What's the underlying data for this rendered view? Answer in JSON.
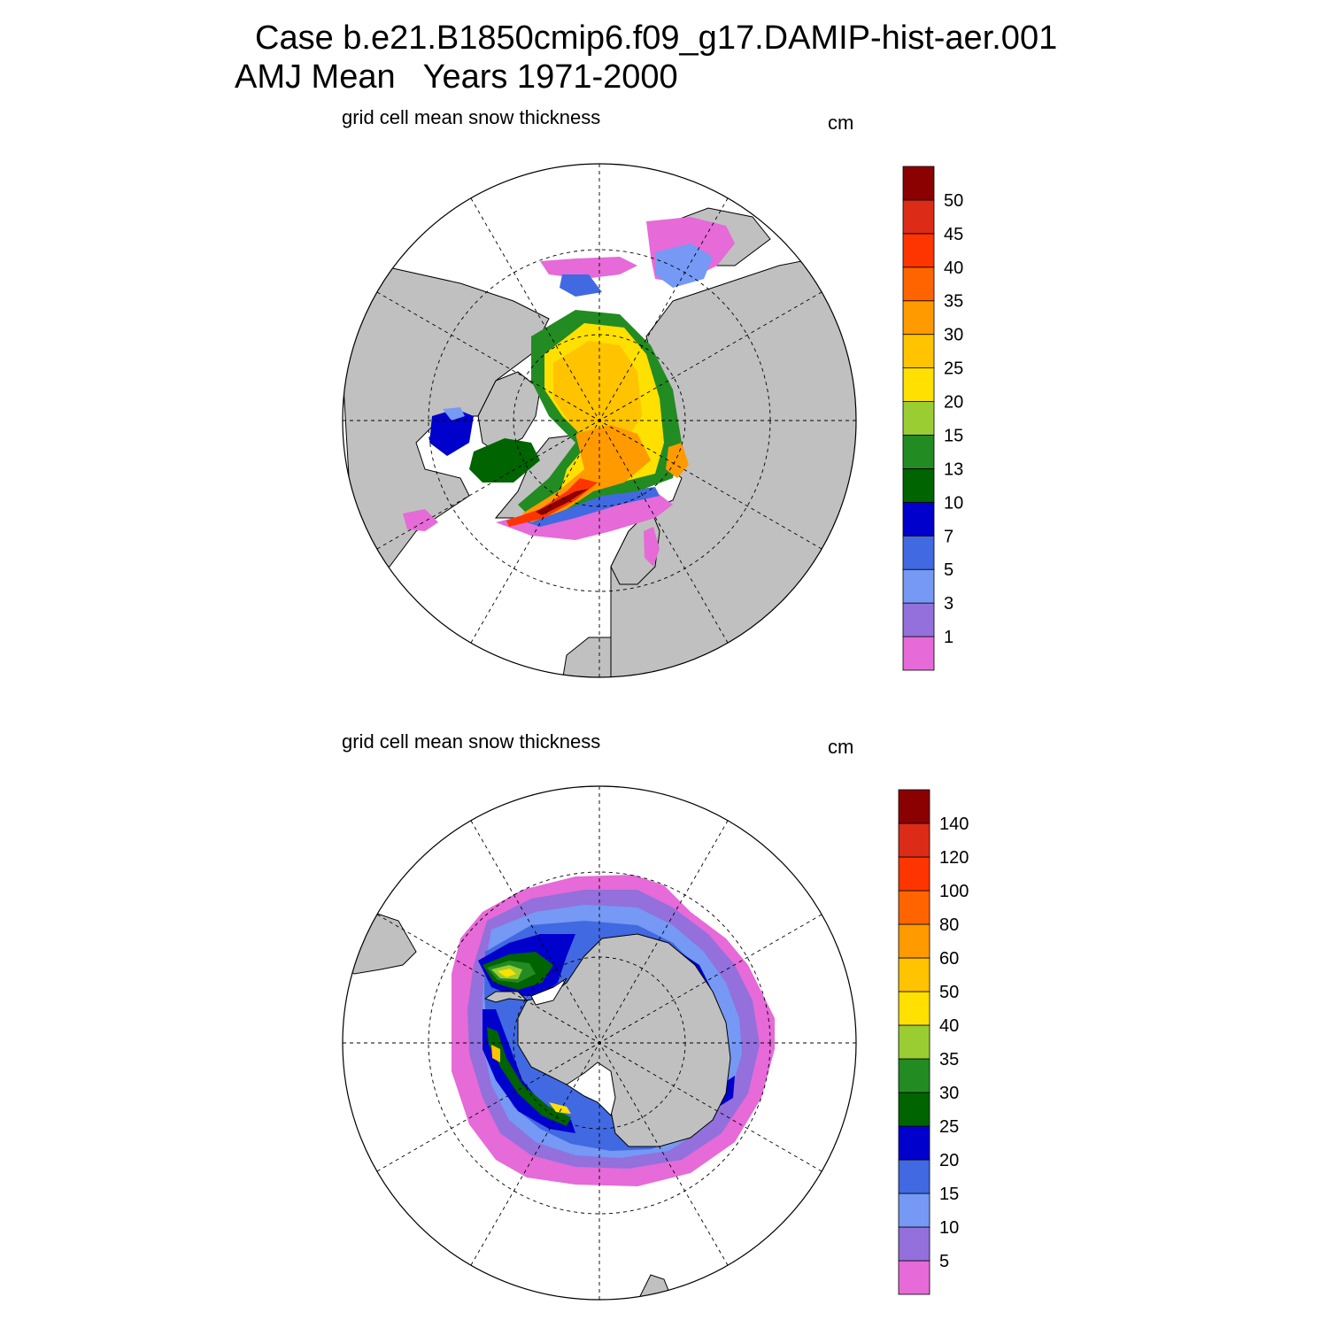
{
  "title": {
    "line1": "Case b.e21.B1850cmip6.f09_g17.DAMIP-hist-aer.001",
    "line2": "AMJ Mean   Years 1971-2000"
  },
  "colors": {
    "land": "#c0c0c0",
    "ocean": "#ffffff",
    "scale": [
      "#e66ad8",
      "#9370db",
      "#7599f4",
      "#4169e1",
      "#0000cd",
      "#006400",
      "#228b22",
      "#9acd32",
      "#ffe000",
      "#ffc300",
      "#ff9a00",
      "#ff6400",
      "#ff3500",
      "#dc2b16",
      "#8b0000"
    ]
  },
  "panels": {
    "arctic": {
      "subtitle": "grid cell mean snow thickness",
      "units": "cm",
      "levels": [
        "1",
        "3",
        "5",
        "7",
        "10",
        "13",
        "15",
        "20",
        "25",
        "30",
        "35",
        "40",
        "45",
        "50"
      ]
    },
    "antarctic": {
      "subtitle": "grid cell mean snow thickness",
      "units": "cm",
      "levels": [
        "5",
        "10",
        "15",
        "20",
        "25",
        "30",
        "35",
        "40",
        "50",
        "60",
        "80",
        "100",
        "120",
        "140"
      ]
    }
  }
}
